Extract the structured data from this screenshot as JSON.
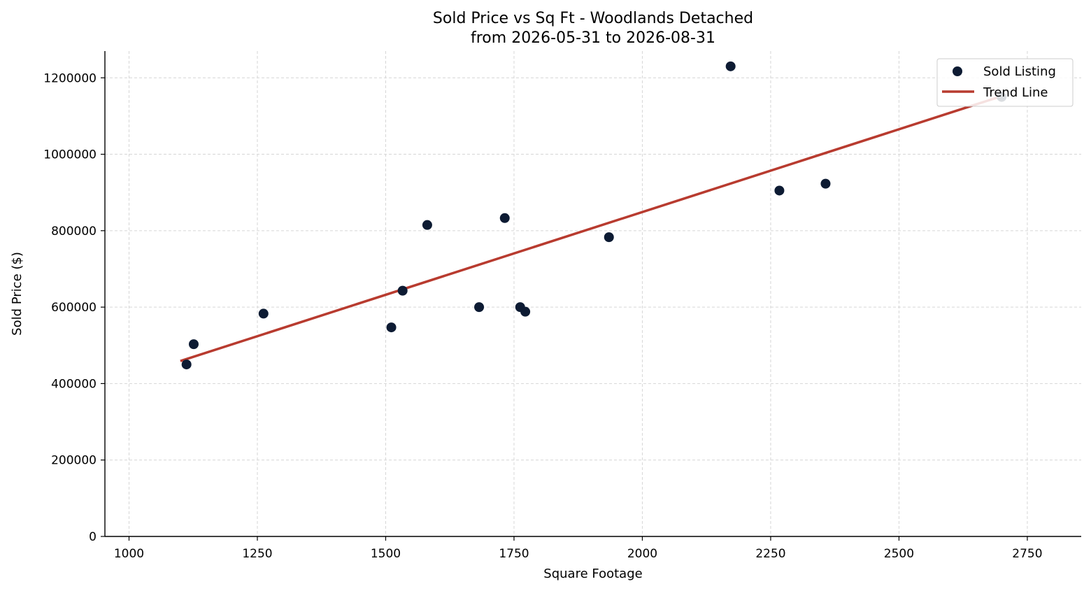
{
  "chart_data": {
    "type": "scatter",
    "title_line1": "Sold Price vs Sq Ft - Woodlands Detached",
    "title_line2": "from 2026-05-31 to 2026-08-31",
    "xlabel": "Square Footage",
    "ylabel": "Sold Price ($)",
    "xlim": [
      953,
      2855
    ],
    "ylim": [
      0,
      1270000
    ],
    "xticks": [
      1000,
      1250,
      1500,
      1750,
      2000,
      2250,
      2500,
      2750
    ],
    "yticks": [
      0,
      200000,
      400000,
      600000,
      800000,
      1000000,
      1200000
    ],
    "grid": true,
    "legend_position": "top-right",
    "series": [
      {
        "name": "Sold Listing",
        "kind": "scatter",
        "color": "#0d1b33",
        "points": [
          {
            "x": 1112,
            "y": 450000
          },
          {
            "x": 1126,
            "y": 503000
          },
          {
            "x": 1262,
            "y": 583000
          },
          {
            "x": 1511,
            "y": 547000
          },
          {
            "x": 1533,
            "y": 643000
          },
          {
            "x": 1581,
            "y": 815000
          },
          {
            "x": 1682,
            "y": 600000
          },
          {
            "x": 1732,
            "y": 833000
          },
          {
            "x": 1762,
            "y": 600000
          },
          {
            "x": 1772,
            "y": 588000
          },
          {
            "x": 1935,
            "y": 783000
          },
          {
            "x": 2172,
            "y": 1230000
          },
          {
            "x": 2267,
            "y": 905000
          },
          {
            "x": 2357,
            "y": 923000
          },
          {
            "x": 2700,
            "y": 1150000
          }
        ]
      },
      {
        "name": "Trend Line",
        "kind": "line",
        "color": "#b83b2f",
        "points": [
          {
            "x": 1100,
            "y": 459000
          },
          {
            "x": 2700,
            "y": 1152000
          }
        ]
      }
    ]
  }
}
